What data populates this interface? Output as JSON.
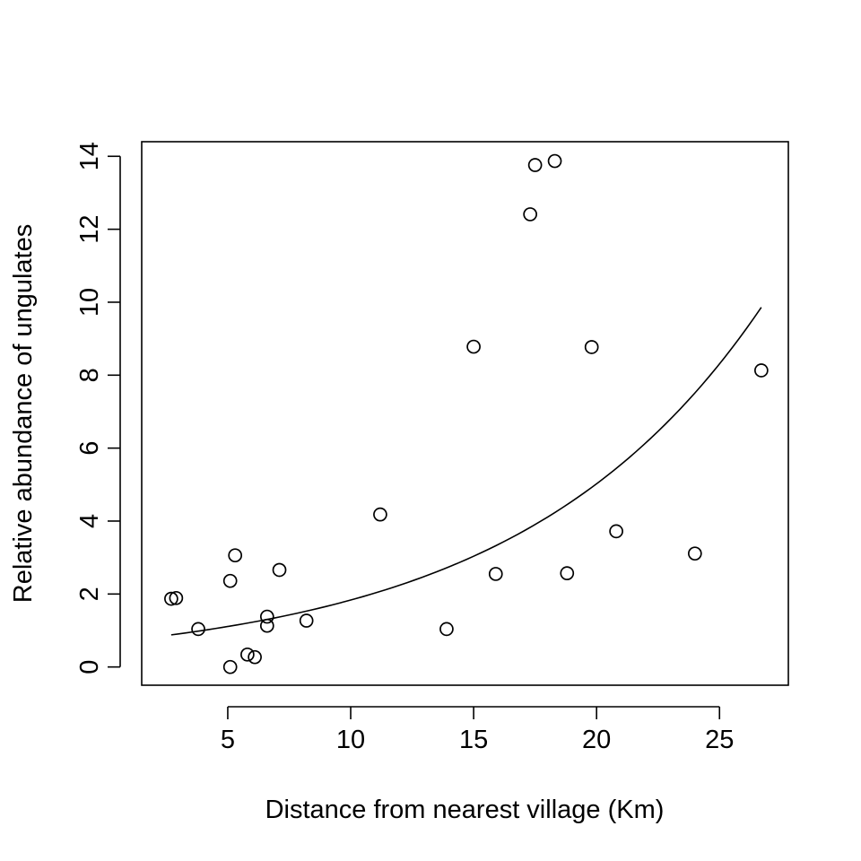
{
  "chart_data": {
    "type": "scatter",
    "title": "",
    "xlabel": "Distance from nearest village (Km)",
    "ylabel": "Relative abundance of ungulates",
    "xlim": [
      1.5,
      27.8
    ],
    "ylim": [
      -0.5,
      14.4
    ],
    "x_ticks": [
      5,
      10,
      15,
      20,
      25
    ],
    "y_ticks": [
      0,
      2,
      4,
      6,
      8,
      10,
      12,
      14
    ],
    "grid": false,
    "legend": "none",
    "points": [
      {
        "x": 2.7,
        "y": 1.87
      },
      {
        "x": 2.9,
        "y": 1.89
      },
      {
        "x": 3.8,
        "y": 1.04
      },
      {
        "x": 5.1,
        "y": 2.36
      },
      {
        "x": 5.1,
        "y": 0.0
      },
      {
        "x": 5.3,
        "y": 3.06
      },
      {
        "x": 5.8,
        "y": 0.34
      },
      {
        "x": 6.1,
        "y": 0.27
      },
      {
        "x": 6.6,
        "y": 1.38
      },
      {
        "x": 6.6,
        "y": 1.13
      },
      {
        "x": 7.1,
        "y": 2.66
      },
      {
        "x": 8.2,
        "y": 1.27
      },
      {
        "x": 11.2,
        "y": 4.18
      },
      {
        "x": 13.9,
        "y": 1.04
      },
      {
        "x": 15.0,
        "y": 8.78
      },
      {
        "x": 15.9,
        "y": 2.55
      },
      {
        "x": 17.3,
        "y": 12.41
      },
      {
        "x": 17.5,
        "y": 13.76
      },
      {
        "x": 18.3,
        "y": 13.87
      },
      {
        "x": 18.8,
        "y": 2.57
      },
      {
        "x": 19.8,
        "y": 8.77
      },
      {
        "x": 20.8,
        "y": 3.72
      },
      {
        "x": 24.0,
        "y": 3.11
      },
      {
        "x": 26.7,
        "y": 8.13
      }
    ],
    "fit_curve": {
      "model": "exponential",
      "x_range": [
        2.7,
        26.7
      ],
      "y_at_start": 0.88,
      "y_at_end": 9.86
    }
  }
}
